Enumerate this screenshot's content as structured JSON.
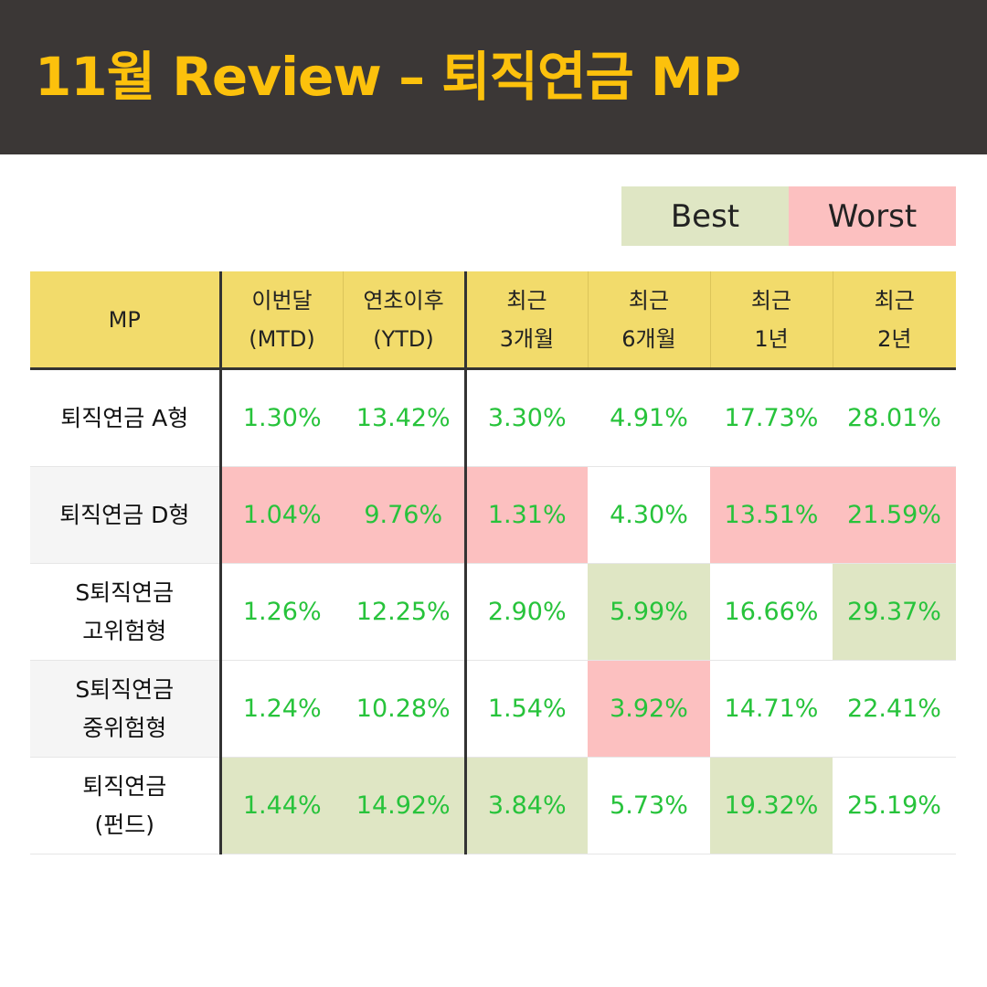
{
  "title": "11월 Review – 퇴직연금 MP",
  "legend": {
    "best": "Best",
    "worst": "Worst"
  },
  "colors": {
    "best": "#dfe6c4",
    "worst": "#fcc0c0",
    "header": "#f2db6b",
    "title": "#fcc10c",
    "value": "#27c33b"
  },
  "columns": [
    {
      "line1": "MP",
      "line2": ""
    },
    {
      "line1": "이번달",
      "line2": "(MTD)"
    },
    {
      "line1": "연초이후",
      "line2": "(YTD)"
    },
    {
      "line1": "최근",
      "line2": "3개월"
    },
    {
      "line1": "최근",
      "line2": "6개월"
    },
    {
      "line1": "최근",
      "line2": "1년"
    },
    {
      "line1": "최근",
      "line2": "2년"
    }
  ],
  "rows": [
    {
      "line1": "퇴직연금 A형",
      "line2": "",
      "cells": [
        {
          "value": "1.30%",
          "mark": ""
        },
        {
          "value": "13.42%",
          "mark": ""
        },
        {
          "value": "3.30%",
          "mark": ""
        },
        {
          "value": "4.91%",
          "mark": ""
        },
        {
          "value": "17.73%",
          "mark": ""
        },
        {
          "value": "28.01%",
          "mark": ""
        }
      ]
    },
    {
      "line1": "퇴직연금 D형",
      "line2": "",
      "cells": [
        {
          "value": "1.04%",
          "mark": "worst"
        },
        {
          "value": "9.76%",
          "mark": "worst"
        },
        {
          "value": "1.31%",
          "mark": "worst"
        },
        {
          "value": "4.30%",
          "mark": ""
        },
        {
          "value": "13.51%",
          "mark": "worst"
        },
        {
          "value": "21.59%",
          "mark": "worst"
        }
      ]
    },
    {
      "line1": "S퇴직연금",
      "line2": "고위험형",
      "cells": [
        {
          "value": "1.26%",
          "mark": ""
        },
        {
          "value": "12.25%",
          "mark": ""
        },
        {
          "value": "2.90%",
          "mark": ""
        },
        {
          "value": "5.99%",
          "mark": "best"
        },
        {
          "value": "16.66%",
          "mark": ""
        },
        {
          "value": "29.37%",
          "mark": "best"
        }
      ]
    },
    {
      "line1": "S퇴직연금",
      "line2": "중위험형",
      "cells": [
        {
          "value": "1.24%",
          "mark": ""
        },
        {
          "value": "10.28%",
          "mark": ""
        },
        {
          "value": "1.54%",
          "mark": ""
        },
        {
          "value": "3.92%",
          "mark": "worst"
        },
        {
          "value": "14.71%",
          "mark": ""
        },
        {
          "value": "22.41%",
          "mark": ""
        }
      ]
    },
    {
      "line1": "퇴직연금",
      "line2": "(펀드)",
      "cells": [
        {
          "value": "1.44%",
          "mark": "best"
        },
        {
          "value": "14.92%",
          "mark": "best"
        },
        {
          "value": "3.84%",
          "mark": "best"
        },
        {
          "value": "5.73%",
          "mark": ""
        },
        {
          "value": "19.32%",
          "mark": "best"
        },
        {
          "value": "25.19%",
          "mark": ""
        }
      ]
    }
  ]
}
